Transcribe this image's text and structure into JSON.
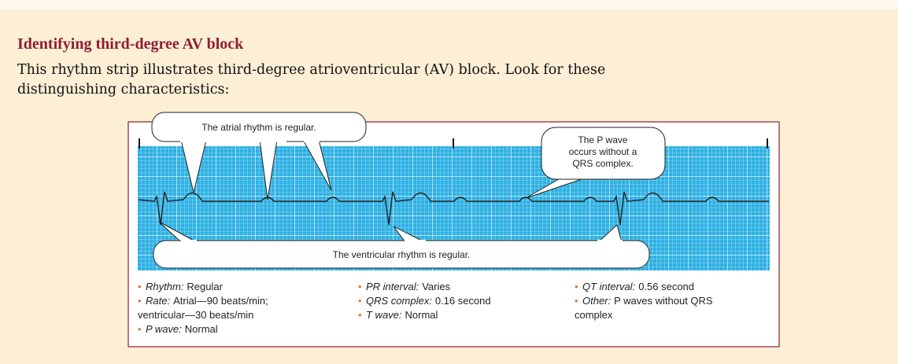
{
  "title": "Identifying third-degree AV block",
  "intro": {
    "lines": [
      "This rhythm strip illustrates third-degree atrioventricular (AV) block. Look for these",
      "distinguishing characteristics:"
    ]
  },
  "figure": {
    "callouts": [
      {
        "lines": [
          "The atrial rhythm is regular."
        ]
      },
      {
        "lines": [
          "The P wave",
          "occurs without a",
          "QRS complex."
        ]
      },
      {
        "lines": [
          "The ventricular rhythm is regular."
        ]
      }
    ],
    "characteristics": [
      {
        "label": "Rhythm:",
        "lines": [
          "Regular"
        ]
      },
      {
        "label": "Rate:",
        "lines": [
          "Atrial—90 beats/min;",
          "ventricular—30 beats/min"
        ]
      },
      {
        "label": "P wave:",
        "lines": [
          "Normal"
        ]
      },
      {
        "label": "PR interval:",
        "lines": [
          "Varies"
        ]
      },
      {
        "label": "QRS complex:",
        "lines": [
          "0.16 second"
        ]
      },
      {
        "label": "T wave:",
        "lines": [
          "Normal"
        ]
      },
      {
        "label": "QT interval:",
        "lines": [
          "0.56 second"
        ]
      },
      {
        "label": "Other:",
        "lines": [
          "P waves without QRS",
          "complex"
        ]
      }
    ]
  }
}
